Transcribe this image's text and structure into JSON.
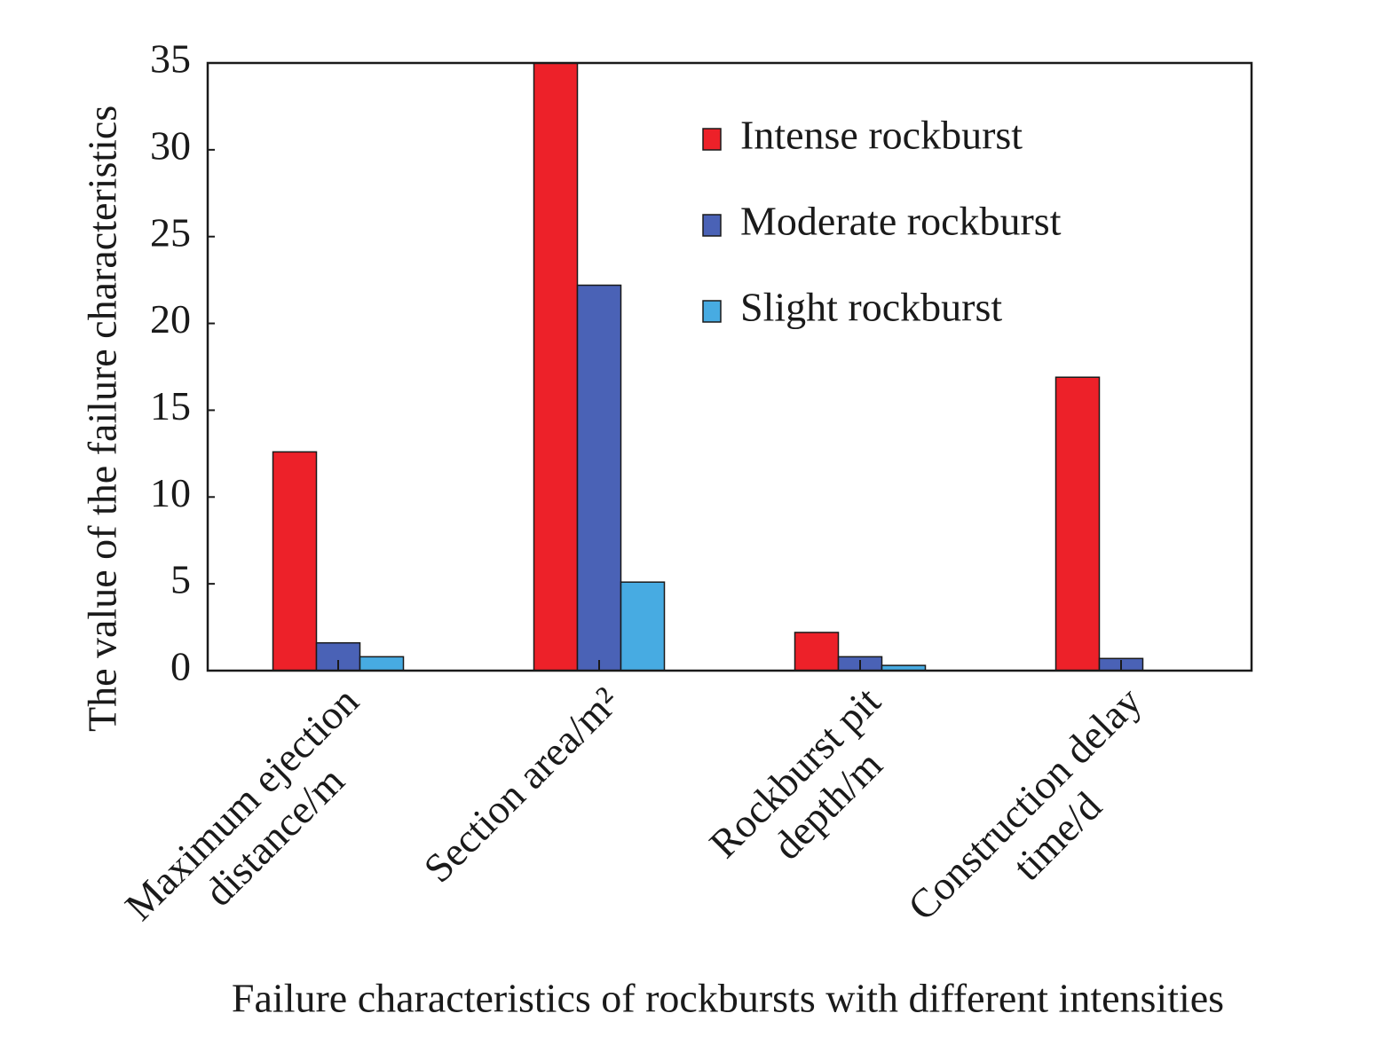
{
  "chart_data": {
    "type": "bar",
    "x_label": "Failure characteristics of rockbursts with different intensities",
    "y_label": "The value of the failure characteristics",
    "categories": [
      [
        "Maximum ejection",
        "distance/m"
      ],
      [
        "Section area/m²"
      ],
      [
        "Rockburst pit",
        "depth/m"
      ],
      [
        "Construction delay",
        "time/d"
      ]
    ],
    "series": [
      {
        "name": "Intense rockburst",
        "color": "#ed2129",
        "values": [
          12.6,
          35,
          2.2,
          16.9
        ]
      },
      {
        "name": "Moderate rockburst",
        "color": "#4a62b6",
        "values": [
          1.6,
          22.2,
          0.8,
          0.7
        ]
      },
      {
        "name": "Slight rockburst",
        "color": "#47abe2",
        "values": [
          0.8,
          5.1,
          0.3,
          0
        ]
      }
    ],
    "ylim": [
      0,
      35
    ],
    "yticks": [
      0,
      5,
      10,
      15,
      20,
      25,
      30,
      35
    ],
    "legend": "upper right"
  }
}
